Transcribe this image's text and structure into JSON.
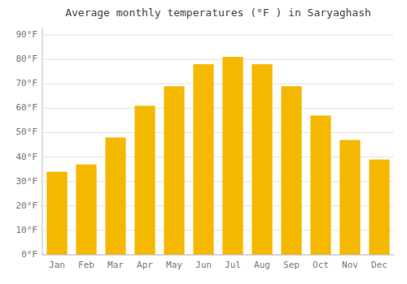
{
  "chart_data": {
    "type": "bar",
    "title": "Average monthly temperatures (°F ) in Saryaghash",
    "categories": [
      "Jan",
      "Feb",
      "Mar",
      "Apr",
      "May",
      "Jun",
      "Jul",
      "Aug",
      "Sep",
      "Oct",
      "Nov",
      "Dec"
    ],
    "values": [
      34,
      37,
      48,
      61,
      69,
      78,
      81,
      78,
      69,
      57,
      47,
      39
    ],
    "color": "#F5B800",
    "ylim": [
      0,
      93
    ],
    "yticks": [
      {
        "value": 0,
        "label": "0°F"
      },
      {
        "value": 10,
        "label": "10°F"
      },
      {
        "value": 20,
        "label": "20°F"
      },
      {
        "value": 30,
        "label": "30°F"
      },
      {
        "value": 40,
        "label": "40°F"
      },
      {
        "value": 50,
        "label": "50°F"
      },
      {
        "value": 60,
        "label": "60°F"
      },
      {
        "value": 70,
        "label": "70°F"
      },
      {
        "value": 80,
        "label": "80°F"
      },
      {
        "value": 90,
        "label": "90°F"
      }
    ],
    "grid": true
  }
}
